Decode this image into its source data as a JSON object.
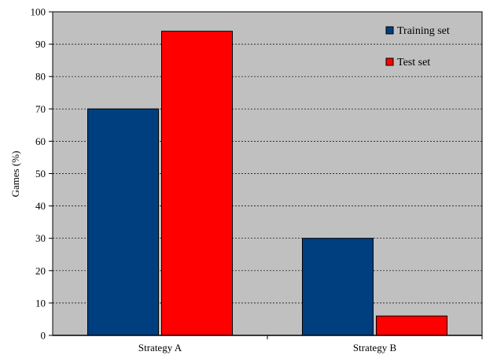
{
  "chart_data": {
    "type": "bar",
    "categories": [
      "Strategy A",
      "Strategy B"
    ],
    "series": [
      {
        "name": "Training set",
        "values": [
          70,
          30
        ],
        "color": "#003f7f"
      },
      {
        "name": "Test set",
        "values": [
          94,
          6
        ],
        "color": "#ff0000"
      }
    ],
    "title": "",
    "xlabel": "",
    "ylabel": "Games (%)",
    "ylim": [
      0,
      100
    ],
    "yticks": [
      0,
      10,
      20,
      30,
      40,
      50,
      60,
      70,
      80,
      90,
      100
    ],
    "grid": true,
    "legend_position": "top-right",
    "plot_background": "#c0c0c0"
  }
}
